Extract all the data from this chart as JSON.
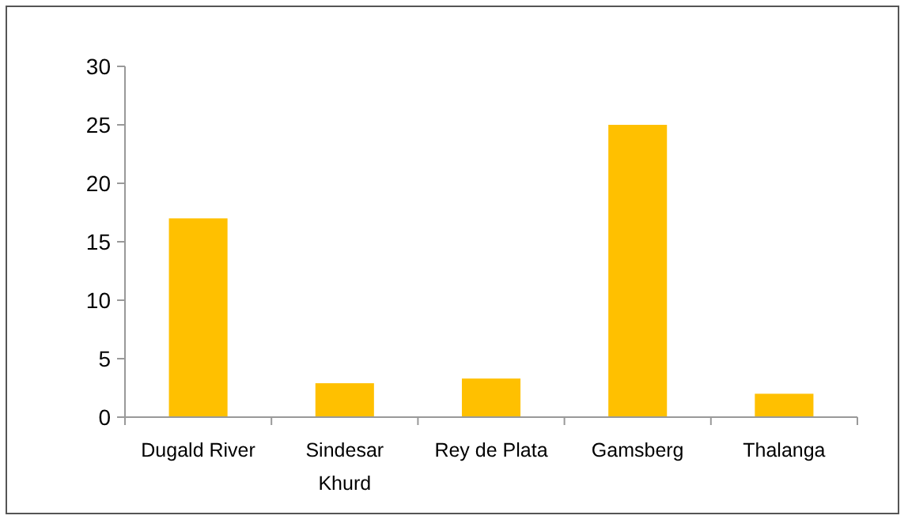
{
  "chart_data": {
    "type": "bar",
    "categories": [
      "Dugald River",
      "Sindesar Khurd",
      "Rey de Plata",
      "Gamsberg",
      "Thalanga"
    ],
    "values": [
      17,
      2.9,
      3.3,
      25,
      2.0
    ],
    "color": "#ffc000",
    "ylim": [
      0,
      30
    ],
    "yticks": [
      0,
      5,
      10,
      15,
      20,
      25,
      30
    ]
  }
}
